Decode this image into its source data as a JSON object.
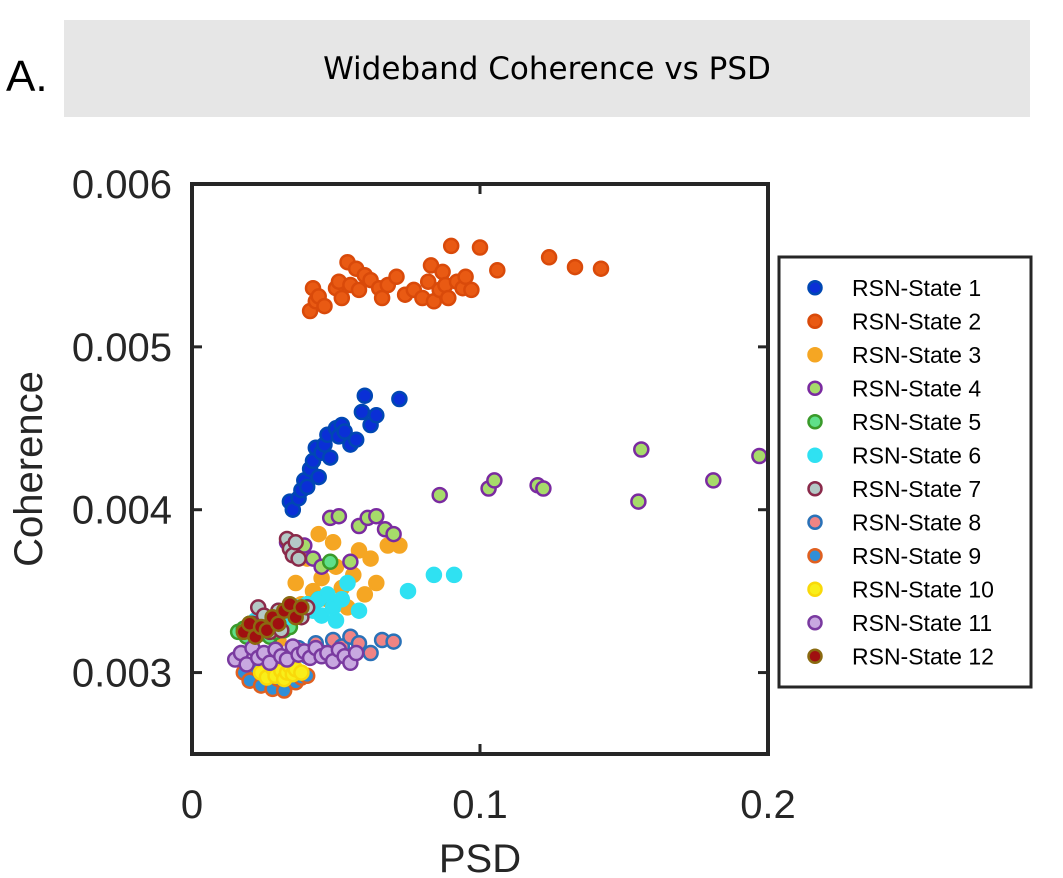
{
  "panel_label": "A.",
  "chart_data": {
    "type": "scatter",
    "title": "Wideband Coherence vs PSD",
    "xlabel": "PSD",
    "ylabel": "Coherence",
    "xlim": [
      0,
      0.2
    ],
    "ylim": [
      0.0025,
      0.006
    ],
    "xticks": [
      0,
      0.1,
      0.2
    ],
    "xtick_labels": [
      "0",
      "0.1",
      "0.2"
    ],
    "yticks": [
      0.003,
      0.004,
      0.005,
      0.006
    ],
    "ytick_labels": [
      "0.003",
      "0.004",
      "0.005",
      "0.006"
    ],
    "grid": false,
    "legend_position": "right",
    "series": [
      {
        "name": "RSN-State 1",
        "fill": "#0a2fd6",
        "edge": "#0047b3",
        "x": [
          0.034,
          0.035,
          0.037,
          0.038,
          0.039,
          0.04,
          0.041,
          0.042,
          0.043,
          0.044,
          0.045,
          0.046,
          0.047,
          0.048,
          0.05,
          0.051,
          0.052,
          0.053,
          0.055,
          0.057,
          0.059,
          0.06,
          0.062,
          0.064,
          0.072
        ],
        "y": [
          0.00405,
          0.004,
          0.00407,
          0.00412,
          0.00418,
          0.00414,
          0.00425,
          0.0043,
          0.00438,
          0.0042,
          0.00435,
          0.0044,
          0.00446,
          0.00432,
          0.0045,
          0.00445,
          0.00452,
          0.00448,
          0.0044,
          0.00443,
          0.0046,
          0.0047,
          0.00452,
          0.00458,
          0.00468
        ]
      },
      {
        "name": "RSN-State 2",
        "fill": "#e95a13",
        "edge": "#d94a0a",
        "x": [
          0.041,
          0.042,
          0.043,
          0.044,
          0.046,
          0.05,
          0.051,
          0.052,
          0.054,
          0.055,
          0.057,
          0.058,
          0.06,
          0.062,
          0.065,
          0.066,
          0.068,
          0.071,
          0.074,
          0.077,
          0.08,
          0.082,
          0.083,
          0.084,
          0.086,
          0.087,
          0.088,
          0.089,
          0.09,
          0.092,
          0.094,
          0.095,
          0.097,
          0.1,
          0.106,
          0.124,
          0.133,
          0.142
        ],
        "y": [
          0.00522,
          0.00536,
          0.00528,
          0.00531,
          0.00525,
          0.00536,
          0.0054,
          0.0053,
          0.00552,
          0.00538,
          0.00548,
          0.00535,
          0.00544,
          0.00541,
          0.00536,
          0.0053,
          0.00538,
          0.00543,
          0.00532,
          0.00535,
          0.0053,
          0.0054,
          0.0055,
          0.00528,
          0.00535,
          0.00546,
          0.00538,
          0.0053,
          0.00562,
          0.0054,
          0.00536,
          0.00543,
          0.00535,
          0.00561,
          0.00547,
          0.00555,
          0.00549,
          0.00548
        ]
      },
      {
        "name": "RSN-State 3",
        "fill": "#f5a623",
        "edge": "#f5a623",
        "x": [
          0.03,
          0.032,
          0.034,
          0.036,
          0.038,
          0.04,
          0.042,
          0.044,
          0.045,
          0.047,
          0.049,
          0.05,
          0.052,
          0.054,
          0.056,
          0.058,
          0.06,
          0.062,
          0.064,
          0.068,
          0.072
        ],
        "y": [
          0.0032,
          0.00335,
          0.0033,
          0.00355,
          0.00342,
          0.0037,
          0.0035,
          0.00385,
          0.00358,
          0.00345,
          0.0038,
          0.00365,
          0.00352,
          0.0034,
          0.0036,
          0.00375,
          0.00348,
          0.0037,
          0.00355,
          0.00378,
          0.00378
        ]
      },
      {
        "name": "RSN-State 4",
        "fill": "#a6db6a",
        "edge": "#7a2aa0",
        "x": [
          0.033,
          0.036,
          0.039,
          0.042,
          0.045,
          0.048,
          0.051,
          0.055,
          0.058,
          0.061,
          0.064,
          0.067,
          0.07,
          0.086,
          0.103,
          0.105,
          0.12,
          0.122,
          0.155,
          0.156,
          0.181,
          0.197
        ],
        "y": [
          0.0038,
          0.00372,
          0.00378,
          0.0037,
          0.00365,
          0.00395,
          0.00396,
          0.00368,
          0.0039,
          0.00395,
          0.00396,
          0.00388,
          0.00385,
          0.00409,
          0.00413,
          0.00418,
          0.00415,
          0.00413,
          0.00405,
          0.00437,
          0.00418,
          0.00433
        ]
      },
      {
        "name": "RSN-State 5",
        "fill": "#5fe08a",
        "edge": "#3a9a2a",
        "x": [
          0.016,
          0.018,
          0.019,
          0.02,
          0.021,
          0.022,
          0.024,
          0.025,
          0.026,
          0.027,
          0.028,
          0.029,
          0.03,
          0.032,
          0.034,
          0.036,
          0.04,
          0.044,
          0.048
        ],
        "y": [
          0.00325,
          0.00327,
          0.00322,
          0.0033,
          0.00326,
          0.00329,
          0.00324,
          0.0033,
          0.00327,
          0.00322,
          0.00328,
          0.00325,
          0.0033,
          0.00326,
          0.00328,
          0.00338,
          0.00342,
          0.00345,
          0.00368
        ]
      },
      {
        "name": "RSN-State 6",
        "fill": "#2fe1f2",
        "edge": "#2fe1f2",
        "x": [
          0.022,
          0.025,
          0.028,
          0.03,
          0.033,
          0.036,
          0.038,
          0.04,
          0.042,
          0.044,
          0.045,
          0.047,
          0.049,
          0.05,
          0.052,
          0.054,
          0.058,
          0.075,
          0.084,
          0.091
        ],
        "y": [
          0.00332,
          0.00335,
          0.0033,
          0.00338,
          0.00334,
          0.0034,
          0.00335,
          0.00342,
          0.00338,
          0.00345,
          0.00335,
          0.00348,
          0.0034,
          0.00332,
          0.00345,
          0.00355,
          0.00338,
          0.0035,
          0.0036,
          0.0036
        ]
      },
      {
        "name": "RSN-State 7",
        "fill": "#b4c9c6",
        "edge": "#8a2a4a",
        "x": [
          0.021,
          0.023,
          0.025,
          0.027,
          0.028,
          0.03,
          0.031,
          0.033,
          0.034,
          0.035,
          0.036,
          0.037,
          0.038,
          0.04
        ],
        "y": [
          0.0033,
          0.0034,
          0.00335,
          0.00325,
          0.00332,
          0.00338,
          0.00326,
          0.00382,
          0.00376,
          0.00372,
          0.0038,
          0.0037,
          0.00334,
          0.0034
        ]
      },
      {
        "name": "RSN-State 8",
        "fill": "#f08484",
        "edge": "#2a72b8",
        "x": [
          0.037,
          0.04,
          0.043,
          0.046,
          0.049,
          0.052,
          0.055,
          0.058,
          0.062,
          0.066,
          0.07
        ],
        "y": [
          0.00315,
          0.0031,
          0.00318,
          0.00312,
          0.0032,
          0.00316,
          0.00322,
          0.00318,
          0.00312,
          0.0032,
          0.00319
        ]
      },
      {
        "name": "RSN-State 9",
        "fill": "#2f8fd8",
        "edge": "#e06020",
        "x": [
          0.018,
          0.02,
          0.022,
          0.024,
          0.026,
          0.028,
          0.03,
          0.032,
          0.034,
          0.036,
          0.038,
          0.04
        ],
        "y": [
          0.003,
          0.00295,
          0.00303,
          0.00292,
          0.00298,
          0.0029,
          0.00296,
          0.00289,
          0.003,
          0.00294,
          0.00297,
          0.00298
        ]
      },
      {
        "name": "RSN-State 10",
        "fill": "#f9ee1a",
        "edge": "#f9d90a",
        "x": [
          0.024,
          0.026,
          0.028,
          0.029,
          0.03,
          0.031,
          0.032,
          0.033,
          0.034,
          0.035,
          0.036,
          0.038
        ],
        "y": [
          0.003,
          0.00297,
          0.00303,
          0.00298,
          0.00305,
          0.00301,
          0.00296,
          0.003,
          0.00304,
          0.00299,
          0.00302,
          0.003
        ]
      },
      {
        "name": "RSN-State 11",
        "fill": "#c8a8e0",
        "edge": "#7a3aa0",
        "x": [
          0.015,
          0.017,
          0.019,
          0.021,
          0.023,
          0.025,
          0.027,
          0.029,
          0.031,
          0.033,
          0.035,
          0.037,
          0.039,
          0.041,
          0.043,
          0.045,
          0.047,
          0.049,
          0.051,
          0.053,
          0.055,
          0.057
        ],
        "y": [
          0.00308,
          0.00312,
          0.00305,
          0.00315,
          0.00309,
          0.00312,
          0.00306,
          0.00314,
          0.0031,
          0.00308,
          0.00316,
          0.00311,
          0.00313,
          0.00309,
          0.00315,
          0.0031,
          0.00312,
          0.00307,
          0.00314,
          0.0031,
          0.00306,
          0.00312
        ]
      },
      {
        "name": "RSN-State 12",
        "fill": "#a01010",
        "edge": "#8a6a10",
        "x": [
          0.018,
          0.02,
          0.022,
          0.024,
          0.026,
          0.028,
          0.03,
          0.032,
          0.034,
          0.036,
          0.038
        ],
        "y": [
          0.00325,
          0.0033,
          0.00322,
          0.00328,
          0.00326,
          0.00334,
          0.0033,
          0.00338,
          0.00342,
          0.00334,
          0.0034
        ]
      }
    ]
  }
}
